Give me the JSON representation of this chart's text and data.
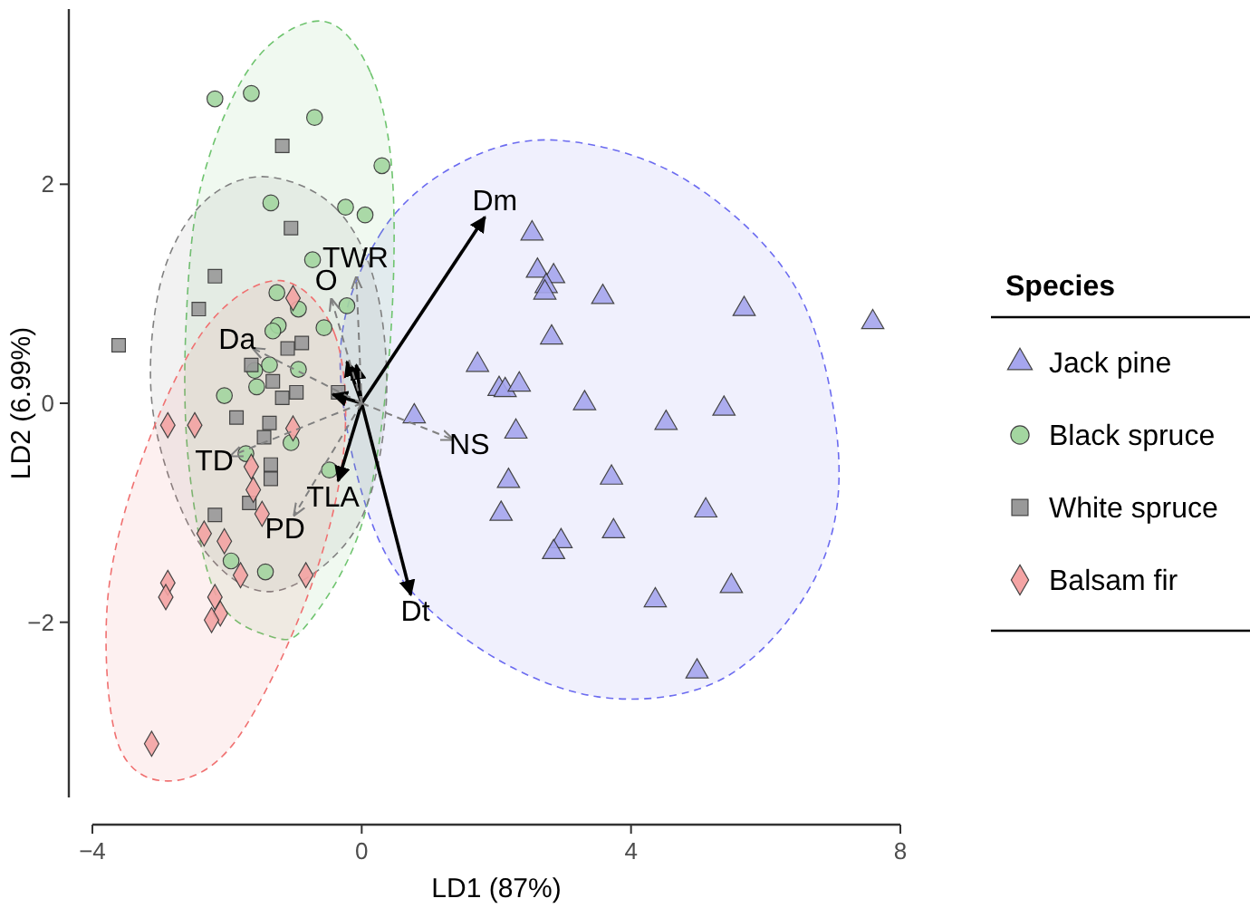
{
  "chart_data": {
    "type": "scatter",
    "xlabel": "LD1 (87%)",
    "ylabel": "LD2 (6.99%)",
    "legend_title": "Species",
    "legend": "right",
    "grid": false,
    "xlim": [
      -4,
      8
    ],
    "xticks": [
      {
        "value": -4,
        "label": "−4"
      },
      0,
      4,
      8
    ],
    "ylim": [
      -3.6,
      3.6
    ],
    "yticks": [
      {
        "value": -2,
        "label": "−2"
      },
      0,
      2
    ],
    "series": [
      {
        "type": "area",
        "color": "#6b6bf0",
        "line_style": "dashed",
        "x": [
          -0.32,
          0.27,
          1.48,
          2.96,
          4.84,
          6.46,
          7.08,
          6.73,
          5.38,
          3.5,
          1.61,
          0.27
        ],
        "values": [
          0.38,
          1.54,
          2.2,
          2.4,
          2.03,
          1.04,
          -0.45,
          -1.6,
          -2.51,
          -2.68,
          -2.18,
          -1.27
        ]
      },
      {
        "type": "area",
        "color": "#6fc46f",
        "line_style": "dashed",
        "x": [
          -0.59,
          0.13,
          0.46,
          0.4,
          0,
          -0.81,
          -1.35,
          -2.15,
          -2.56,
          -2.61,
          -2.37,
          -1.61
        ],
        "values": [
          3.49,
          3.02,
          2.03,
          0.38,
          -1.11,
          -2.02,
          -2.13,
          -1.77,
          -0.61,
          0.71,
          2.03,
          3.11
        ]
      },
      {
        "type": "area",
        "color": "#808080",
        "line_style": "dashed",
        "x": [
          -1.48,
          -0.4,
          0.22,
          0.35,
          -0.13,
          -1.35,
          -2.42,
          -3.09,
          -3.01,
          -2.42
        ],
        "values": [
          2.07,
          1.79,
          1.04,
          -0.12,
          -1.19,
          -1.72,
          -1.27,
          -0.12,
          1.04,
          1.79
        ]
      },
      {
        "type": "area",
        "color": "#f07070",
        "line_style": "dashed",
        "x": [
          -1.21,
          -0.4,
          -0.27,
          -0.81,
          -1.88,
          -2.88,
          -3.63,
          -3.77,
          -3.23,
          -2.29
        ],
        "values": [
          1.12,
          0.63,
          -0.45,
          -1.77,
          -3.09,
          -3.45,
          -3.09,
          -1.77,
          -0.45,
          0.71
        ]
      },
      {
        "name": "Jack pine",
        "color": "#a6a6ee",
        "marker": "triangle",
        "x": [
          2.53,
          2.61,
          2.85,
          2.74,
          2.72,
          3.58,
          5.68,
          7.59,
          2.82,
          1.72,
          2.04,
          2.13,
          2.34,
          3.31,
          5.38,
          4.52,
          0.78,
          2.29,
          2.18,
          3.71,
          5.11,
          2.07,
          3.74,
          2.96,
          2.85,
          5.49,
          4.36,
          4.98
        ],
        "values": [
          1.55,
          1.21,
          1.16,
          1.07,
          1.01,
          0.97,
          0.86,
          0.74,
          0.6,
          0.35,
          0.13,
          0.12,
          0.17,
          0,
          -0.05,
          -0.18,
          -0.12,
          -0.26,
          -0.71,
          -0.68,
          -0.98,
          -1.01,
          -1.17,
          -1.26,
          -1.36,
          -1.67,
          -1.8,
          -2.45
        ]
      },
      {
        "name": "Black spruce",
        "color": "#a3d6a0",
        "marker": "circle",
        "x": [
          -2.18,
          -1.64,
          -0.7,
          0.3,
          -1.35,
          -0.24,
          0.05,
          -0.73,
          -0.22,
          -1.26,
          -0.94,
          -0.56,
          -1.24,
          -1.32,
          -1.37,
          -1.59,
          -0.94,
          -2.04,
          -1.56,
          -1.72,
          -1.05,
          -0.48,
          -1.94,
          -1.43
        ],
        "values": [
          2.78,
          2.83,
          2.61,
          2.17,
          1.83,
          1.79,
          1.72,
          1.31,
          0.89,
          1.01,
          0.86,
          0.69,
          0.71,
          0.66,
          0.35,
          0.3,
          0.31,
          0.07,
          0.15,
          -0.46,
          -0.36,
          -0.61,
          -1.44,
          -1.54
        ]
      },
      {
        "name": "White spruce",
        "color": "#999999",
        "marker": "square",
        "x": [
          -1.18,
          -1.05,
          -2.18,
          -2.42,
          -3.61,
          -1.1,
          -0.89,
          -1.64,
          -1.32,
          -0.97,
          -1.18,
          -1.86,
          -1.37,
          -1.45,
          -0.35,
          -1.35,
          -1.35,
          -1.67,
          -2.18
        ],
        "values": [
          2.35,
          1.6,
          1.16,
          0.86,
          0.53,
          0.5,
          0.55,
          0.35,
          0.2,
          0.1,
          0.05,
          -0.13,
          -0.18,
          -0.31,
          0.1,
          -0.56,
          -0.69,
          -0.91,
          -1.02
        ]
      },
      {
        "name": "Balsam fir",
        "color": "#f4a4a4",
        "marker": "diamond",
        "x": [
          -1.02,
          -2.88,
          -2.48,
          -1.02,
          -1.64,
          -1.61,
          -1.48,
          -2.34,
          -2.04,
          -1.8,
          -0.83,
          -2.88,
          -2.91,
          -2.18,
          -2.1,
          -2.23,
          -3.12
        ],
        "values": [
          0.96,
          -0.2,
          -0.2,
          -0.23,
          -0.58,
          -0.79,
          -1.01,
          -1.19,
          -1.26,
          -1.57,
          -1.57,
          -1.64,
          -1.77,
          -1.77,
          -1.92,
          -1.98,
          -3.11
        ]
      },
      {
        "type": "line",
        "name": "Dm",
        "color": "#000000",
        "line_style": "solid",
        "x": [
          0,
          1.83
        ],
        "values": [
          0,
          1.7
        ]
      },
      {
        "type": "line",
        "name": "Dt",
        "color": "#000000",
        "line_style": "solid",
        "x": [
          0,
          0.73
        ],
        "values": [
          0,
          -1.75
        ]
      },
      {
        "type": "line",
        "name": "TLA",
        "color": "#000000",
        "line_style": "solid",
        "x": [
          0,
          -0.35
        ],
        "values": [
          0,
          -0.71
        ]
      },
      {
        "type": "line",
        "color": "#000000",
        "line_style": "solid",
        "x": [
          0,
          -0.22
        ],
        "values": [
          0,
          0.38
        ]
      },
      {
        "type": "line",
        "color": "#000000",
        "line_style": "solid",
        "x": [
          0,
          -0.08
        ],
        "values": [
          0,
          0.35
        ]
      },
      {
        "type": "line",
        "color": "#000000",
        "line_style": "solid",
        "x": [
          0,
          -0.43
        ],
        "values": [
          0,
          0.08
        ]
      },
      {
        "type": "line",
        "name": "TWR",
        "color": "#808080",
        "line_style": "dashed",
        "x": [
          0,
          -0.08
        ],
        "values": [
          0,
          1.15
        ]
      },
      {
        "type": "line",
        "name": "O",
        "color": "#808080",
        "line_style": "dashed",
        "x": [
          0,
          -0.45
        ],
        "values": [
          0,
          0.95
        ]
      },
      {
        "type": "line",
        "name": "Da",
        "color": "#808080",
        "line_style": "dashed",
        "x": [
          0,
          -1.61
        ],
        "values": [
          0,
          0.5
        ]
      },
      {
        "type": "line",
        "name": "TD",
        "color": "#808080",
        "line_style": "dashed",
        "x": [
          0,
          -1.94
        ],
        "values": [
          0,
          -0.48
        ]
      },
      {
        "type": "line",
        "name": "PD",
        "color": "#808080",
        "line_style": "dashed",
        "x": [
          0,
          -1
        ],
        "values": [
          0,
          -1.02
        ]
      },
      {
        "type": "line",
        "name": "NS",
        "color": "#808080",
        "line_style": "dashed",
        "x": [
          0,
          1.35
        ],
        "values": [
          0,
          -0.33
        ]
      }
    ]
  }
}
